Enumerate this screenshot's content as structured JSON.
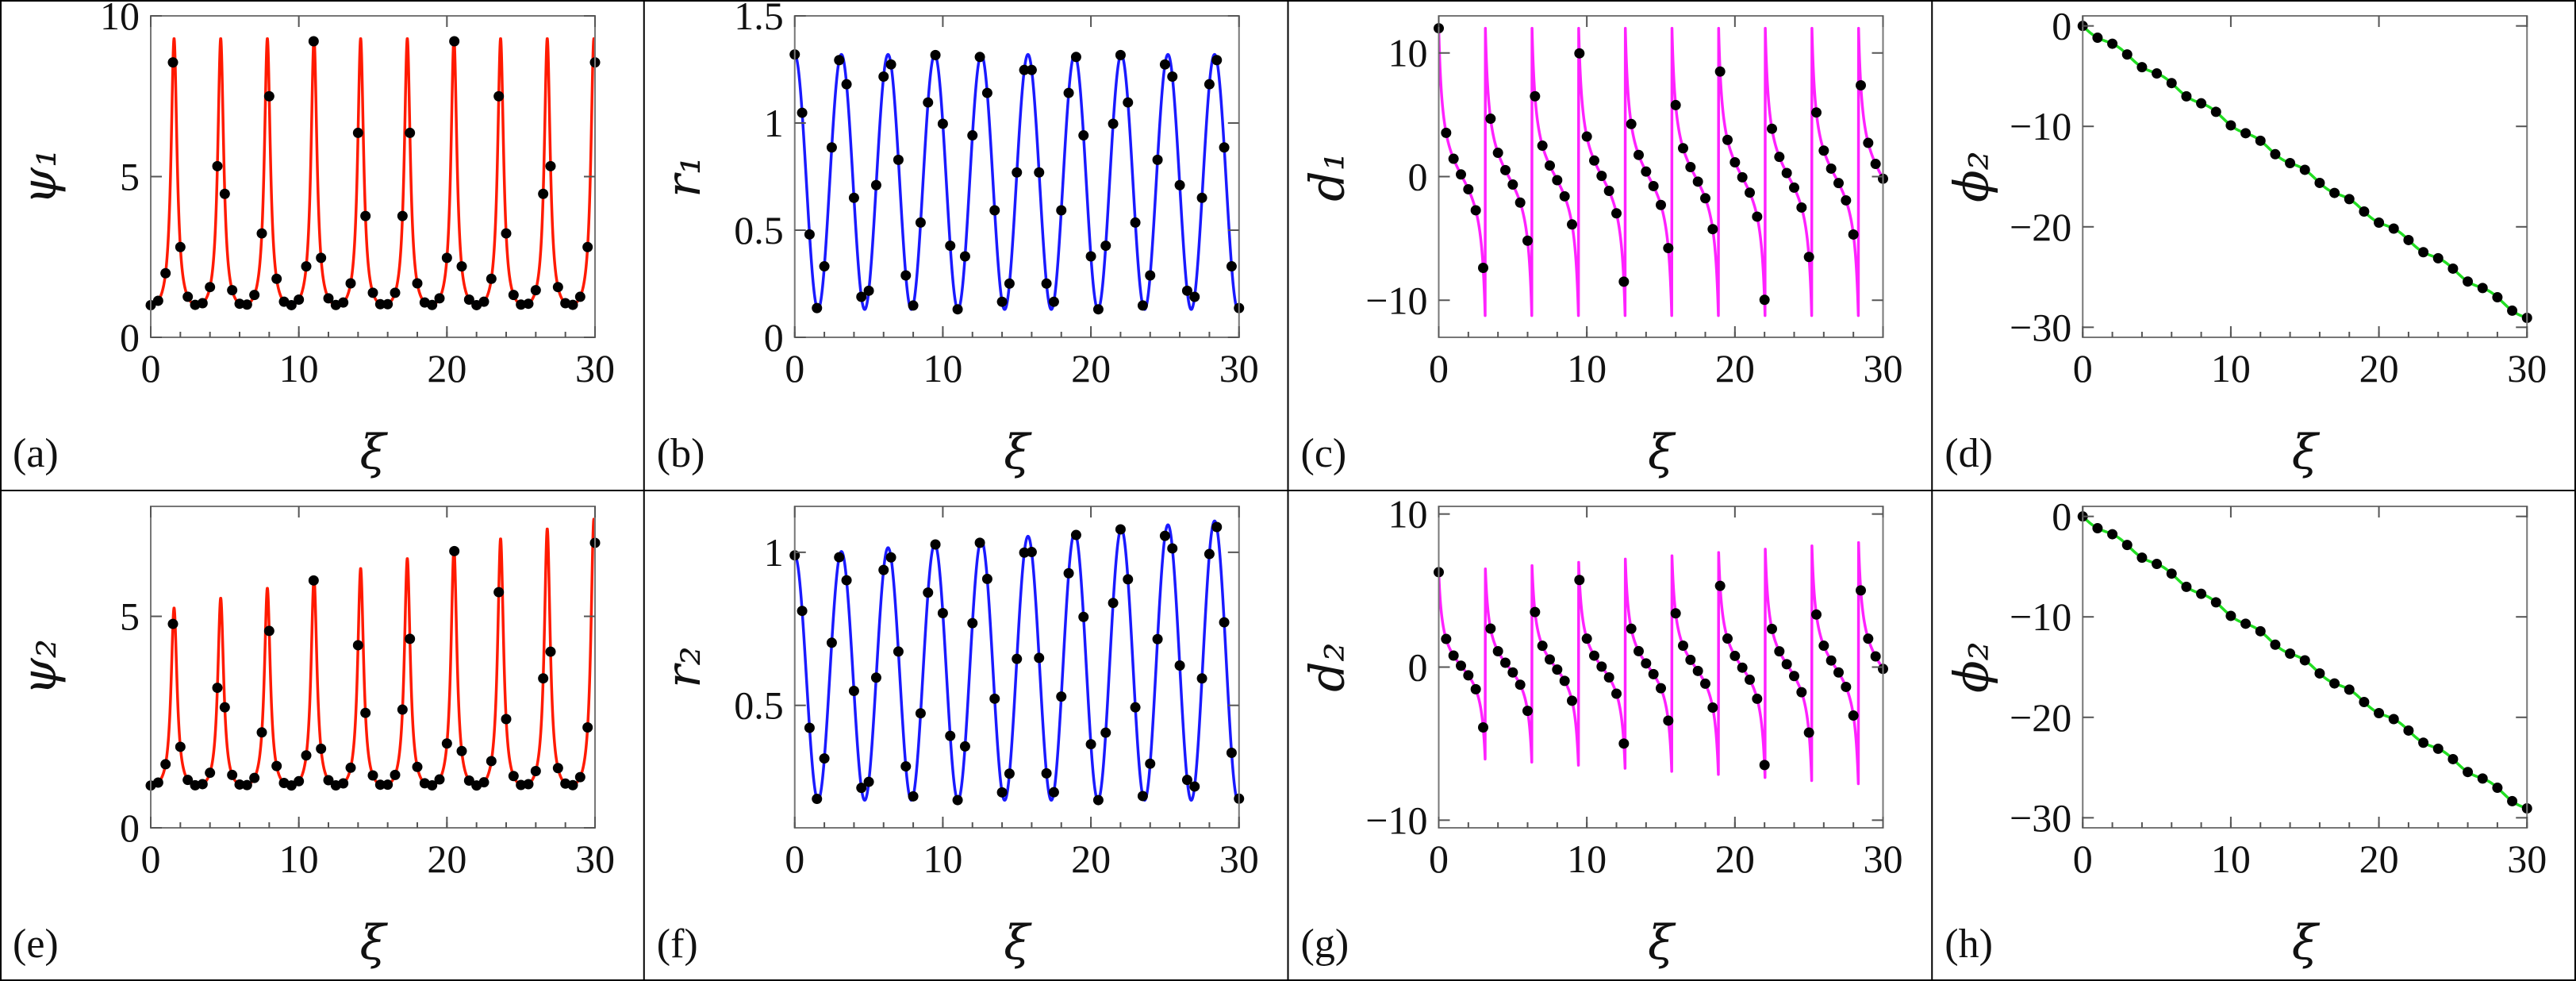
{
  "figure": {
    "xlabel": "ξ"
  },
  "chart_data": [
    {
      "panel": "(a)",
      "ylabel": "ψ₁",
      "type": "line+scatter",
      "curve": "psi",
      "color": "#ff1a00",
      "xlim": [
        0,
        30
      ],
      "ylim": [
        0,
        10
      ],
      "xticks": [
        "0",
        "10",
        "20",
        "30"
      ],
      "yticks": [
        "0",
        "5",
        "10"
      ],
      "ytick_values": [
        0,
        5,
        10
      ],
      "series": [
        {
          "period": 3.15,
          "base": 1.0,
          "peak": 9.3,
          "growth": 0.0
        }
      ],
      "markers": {
        "every": 0.5
      }
    },
    {
      "panel": "(b)",
      "ylabel": "r₁",
      "type": "line+scatter",
      "curve": "r",
      "color": "#1a1aff",
      "xlim": [
        0,
        30
      ],
      "ylim": [
        0,
        1.5
      ],
      "xticks": [
        "0",
        "10",
        "20",
        "30"
      ],
      "yticks": [
        "0",
        "0.5",
        "1",
        "1.5"
      ],
      "ytick_values": [
        0,
        0.5,
        1,
        1.5
      ],
      "series": [
        {
          "period": 3.15,
          "max": 1.32,
          "min": 0.13,
          "growth": 0.0
        }
      ],
      "markers": {
        "every": 0.5
      }
    },
    {
      "panel": "(c)",
      "ylabel": "d₁",
      "type": "line+scatter",
      "curve": "d",
      "color": "#ff22ff",
      "xlim": [
        0,
        30
      ],
      "ylim": [
        -13,
        13
      ],
      "xticks": [
        "0",
        "10",
        "20",
        "30"
      ],
      "yticks": [
        "−10",
        "0",
        "10"
      ],
      "ytick_values": [
        -10,
        0,
        10
      ],
      "series": [
        {
          "period": 3.15,
          "amplitude": 12.0,
          "growth": 0.0
        }
      ],
      "markers": {
        "every": 0.5
      }
    },
    {
      "panel": "(d)",
      "ylabel": "ϕ₂",
      "type": "line+scatter",
      "curve": "phi",
      "color": "#22dd22",
      "xlim": [
        0,
        30
      ],
      "ylim": [
        -31,
        1
      ],
      "xticks": [
        "0",
        "10",
        "20",
        "30"
      ],
      "yticks": [
        "−30",
        "−20",
        "−10",
        "0"
      ],
      "ytick_values": [
        -30,
        -20,
        -10,
        0
      ],
      "series": [
        {
          "period": 3.15,
          "slope": -0.97
        }
      ],
      "markers": {
        "every": 1.0
      }
    },
    {
      "panel": "(e)",
      "ylabel": "ψ₂",
      "type": "line+scatter",
      "curve": "psi",
      "color": "#ff1a00",
      "xlim": [
        0,
        30
      ],
      "ylim": [
        0,
        7.6
      ],
      "xticks": [
        "0",
        "10",
        "20",
        "30"
      ],
      "yticks": [
        "0",
        "5"
      ],
      "ytick_values": [
        0,
        5
      ],
      "series": [
        {
          "period": 3.15,
          "base": 1.0,
          "peak": 5.2,
          "growth": 0.045
        }
      ],
      "markers": {
        "every": 0.5
      }
    },
    {
      "panel": "(f)",
      "ylabel": "r₂",
      "type": "line+scatter",
      "curve": "r",
      "color": "#1a1aff",
      "xlim": [
        0,
        30
      ],
      "ylim": [
        0.1,
        1.15
      ],
      "xticks": [
        "0",
        "10",
        "20",
        "30"
      ],
      "yticks": [
        "0.5",
        "1"
      ],
      "ytick_values": [
        0.5,
        1
      ],
      "series": [
        {
          "period": 3.15,
          "max": 0.99,
          "min": 0.19,
          "growth": 0.004
        }
      ],
      "markers": {
        "every": 0.5
      }
    },
    {
      "panel": "(g)",
      "ylabel": "d₂",
      "type": "line+scatter",
      "curve": "d",
      "color": "#ff22ff",
      "xlim": [
        0,
        30
      ],
      "ylim": [
        -10.5,
        10.5
      ],
      "xticks": [
        "0",
        "10",
        "20",
        "30"
      ],
      "yticks": [
        "−10",
        "0",
        "10"
      ],
      "ytick_values": [
        -10,
        0,
        10
      ],
      "series": [
        {
          "period": 3.15,
          "amplitude": 6.2,
          "growth": 0.011
        }
      ],
      "markers": {
        "every": 0.5
      }
    },
    {
      "panel": "(h)",
      "ylabel": "ϕ₂",
      "type": "line+scatter",
      "curve": "phi",
      "color": "#22dd22",
      "xlim": [
        0,
        30
      ],
      "ylim": [
        -31,
        1
      ],
      "xticks": [
        "0",
        "10",
        "20",
        "30"
      ],
      "yticks": [
        "−30",
        "−20",
        "−10",
        "0"
      ],
      "ytick_values": [
        -30,
        -20,
        -10,
        0
      ],
      "series": [
        {
          "period": 3.15,
          "slope": -0.97
        }
      ],
      "markers": {
        "every": 1.0
      }
    }
  ]
}
